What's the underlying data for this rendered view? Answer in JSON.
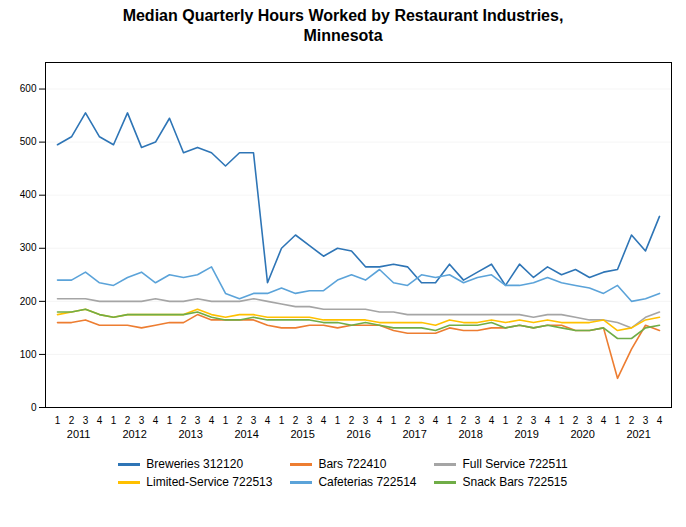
{
  "chart_data": {
    "type": "line",
    "title": "Median Quarterly Hours Worked by Restaurant Industries,\nMinnesota",
    "categories": [
      "1",
      "2",
      "3",
      "4",
      "1",
      "2",
      "3",
      "4",
      "1",
      "2",
      "3",
      "4",
      "1",
      "2",
      "3",
      "4",
      "1",
      "2",
      "3",
      "4",
      "1",
      "2",
      "3",
      "4",
      "1",
      "2",
      "3",
      "4",
      "1",
      "2",
      "3",
      "4",
      "1",
      "2",
      "3",
      "4",
      "1",
      "2",
      "3",
      "4",
      "1",
      "2",
      "3",
      "4"
    ],
    "years": [
      2011,
      2012,
      2013,
      2014,
      2015,
      2016,
      2017,
      2018,
      2019,
      2020,
      2021
    ],
    "series": [
      {
        "name": "Breweries 312120",
        "color": "#2E75B6",
        "values": [
          495,
          510,
          555,
          510,
          495,
          555,
          490,
          500,
          545,
          480,
          490,
          480,
          455,
          480,
          480,
          235,
          300,
          325,
          305,
          285,
          300,
          295,
          265,
          265,
          270,
          265,
          235,
          235,
          270,
          240,
          255,
          270,
          230,
          270,
          245,
          265,
          250,
          260,
          245,
          255,
          260,
          325,
          295,
          360
        ]
      },
      {
        "name": "Bars 722410",
        "color": "#ED7D31",
        "values": [
          160,
          160,
          165,
          155,
          155,
          155,
          150,
          155,
          160,
          160,
          175,
          165,
          165,
          165,
          165,
          155,
          150,
          150,
          155,
          155,
          150,
          155,
          155,
          155,
          145,
          140,
          140,
          140,
          150,
          145,
          145,
          150,
          150,
          155,
          150,
          155,
          155,
          145,
          145,
          150,
          55,
          110,
          155,
          145
        ]
      },
      {
        "name": "Full Service 722511",
        "color": "#A5A5A5",
        "values": [
          205,
          205,
          205,
          200,
          200,
          200,
          200,
          205,
          200,
          200,
          205,
          200,
          200,
          200,
          205,
          200,
          195,
          190,
          190,
          185,
          185,
          185,
          185,
          180,
          180,
          175,
          175,
          175,
          175,
          175,
          175,
          175,
          175,
          175,
          170,
          175,
          175,
          170,
          165,
          165,
          160,
          150,
          170,
          180
        ]
      },
      {
        "name": "Limited-Service 722513",
        "color": "#FFC000",
        "values": [
          175,
          180,
          185,
          175,
          170,
          175,
          175,
          175,
          175,
          175,
          185,
          175,
          170,
          175,
          175,
          170,
          170,
          170,
          170,
          165,
          165,
          165,
          165,
          160,
          160,
          160,
          160,
          155,
          165,
          160,
          160,
          165,
          160,
          165,
          160,
          165,
          160,
          160,
          160,
          165,
          145,
          150,
          165,
          170
        ]
      },
      {
        "name": "Cafeterias 722514",
        "color": "#5BA3D9",
        "values": [
          240,
          240,
          255,
          235,
          230,
          245,
          255,
          235,
          250,
          245,
          250,
          265,
          215,
          205,
          215,
          215,
          225,
          215,
          220,
          220,
          240,
          250,
          240,
          260,
          235,
          230,
          250,
          245,
          250,
          235,
          245,
          250,
          230,
          230,
          235,
          245,
          235,
          230,
          225,
          215,
          230,
          200,
          205,
          215
        ]
      },
      {
        "name": "Snack Bars 722515",
        "color": "#70AD47",
        "values": [
          180,
          180,
          185,
          175,
          170,
          175,
          175,
          175,
          175,
          175,
          180,
          170,
          165,
          165,
          170,
          165,
          165,
          165,
          165,
          160,
          160,
          155,
          160,
          155,
          150,
          150,
          150,
          145,
          155,
          155,
          155,
          160,
          150,
          155,
          150,
          155,
          150,
          145,
          145,
          150,
          130,
          130,
          150,
          155
        ]
      }
    ],
    "ylim": [
      0,
      650
    ],
    "yticks": [
      0,
      100,
      200,
      300,
      400,
      500,
      600
    ],
    "grid": true,
    "legend": "bottom"
  }
}
